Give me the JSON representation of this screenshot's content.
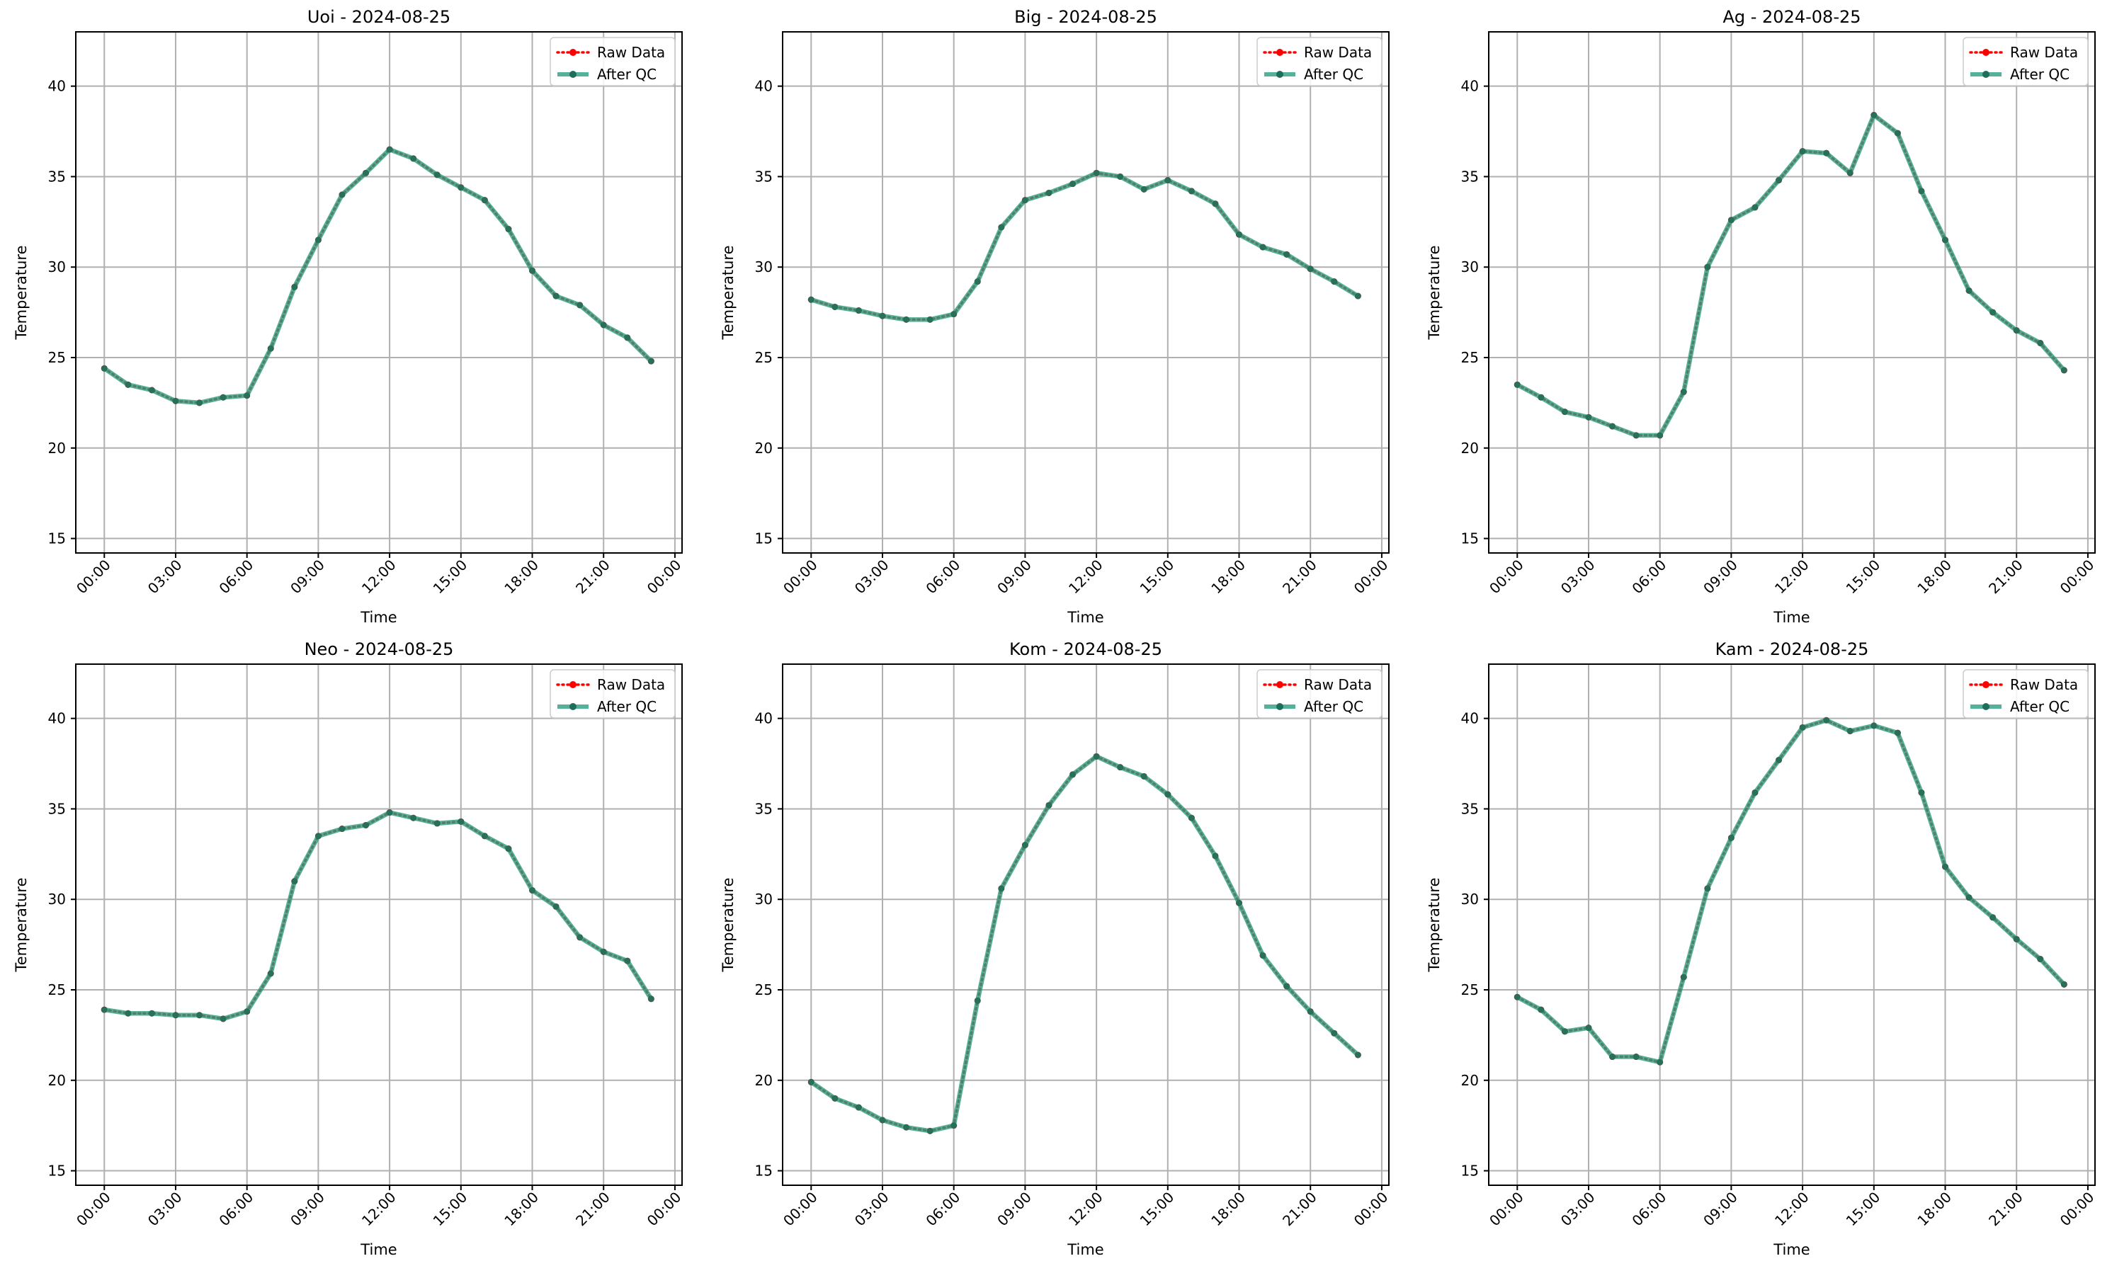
{
  "chart_data": [
    {
      "type": "line",
      "title": "Uoi - 2024-08-25",
      "xlabel": "Time",
      "ylabel": "Temperature",
      "x": [
        0,
        1,
        2,
        3,
        4,
        5,
        6,
        7,
        8,
        9,
        10,
        11,
        12,
        13,
        14,
        15,
        16,
        17,
        18,
        19,
        20,
        21,
        22,
        23
      ],
      "xticks": [
        "00:00",
        "03:00",
        "06:00",
        "09:00",
        "12:00",
        "15:00",
        "18:00",
        "21:00",
        "00:00"
      ],
      "xlim": [
        -1.2,
        24.3
      ],
      "ylim": [
        14.2,
        43
      ],
      "yticks": [
        15,
        20,
        25,
        30,
        35,
        40
      ],
      "grid": true,
      "legend_position": "top-right",
      "series": [
        {
          "name": "Raw Data",
          "style": "dotted-marker",
          "color": "#ff0000",
          "values": [
            24.4,
            23.5,
            23.2,
            22.6,
            22.5,
            22.8,
            22.9,
            25.5,
            28.9,
            31.5,
            34.0,
            35.2,
            36.5,
            36.0,
            35.1,
            34.4,
            33.7,
            32.1,
            29.8,
            28.4,
            27.9,
            26.8,
            26.1,
            24.8
          ]
        },
        {
          "name": "After QC",
          "style": "solid-marker",
          "color": "#2a9d80",
          "values": [
            24.4,
            23.5,
            23.2,
            22.6,
            22.5,
            22.8,
            22.9,
            25.5,
            28.9,
            31.5,
            34.0,
            35.2,
            36.5,
            36.0,
            35.1,
            34.4,
            33.7,
            32.1,
            29.8,
            28.4,
            27.9,
            26.8,
            26.1,
            24.8
          ]
        }
      ]
    },
    {
      "type": "line",
      "title": "Big - 2024-08-25",
      "xlabel": "Time",
      "ylabel": "Temperature",
      "x": [
        0,
        1,
        2,
        3,
        4,
        5,
        6,
        7,
        8,
        9,
        10,
        11,
        12,
        13,
        14,
        15,
        16,
        17,
        18,
        19,
        20,
        21,
        22,
        23
      ],
      "xticks": [
        "00:00",
        "03:00",
        "06:00",
        "09:00",
        "12:00",
        "15:00",
        "18:00",
        "21:00",
        "00:00"
      ],
      "xlim": [
        -1.2,
        24.3
      ],
      "ylim": [
        14.2,
        43
      ],
      "yticks": [
        15,
        20,
        25,
        30,
        35,
        40
      ],
      "grid": true,
      "legend_position": "top-right",
      "series": [
        {
          "name": "Raw Data",
          "style": "dotted-marker",
          "color": "#ff0000",
          "values": [
            28.2,
            27.8,
            27.6,
            27.3,
            27.1,
            27.1,
            27.4,
            29.2,
            32.2,
            33.7,
            34.1,
            34.6,
            35.2,
            35.0,
            34.3,
            34.8,
            34.2,
            33.5,
            31.8,
            31.1,
            30.7,
            29.9,
            29.2,
            28.4
          ]
        },
        {
          "name": "After QC",
          "style": "solid-marker",
          "color": "#2a9d80",
          "values": [
            28.2,
            27.8,
            27.6,
            27.3,
            27.1,
            27.1,
            27.4,
            29.2,
            32.2,
            33.7,
            34.1,
            34.6,
            35.2,
            35.0,
            34.3,
            34.8,
            34.2,
            33.5,
            31.8,
            31.1,
            30.7,
            29.9,
            29.2,
            28.4
          ]
        }
      ]
    },
    {
      "type": "line",
      "title": "Ag - 2024-08-25",
      "xlabel": "Time",
      "ylabel": "Temperature",
      "x": [
        0,
        1,
        2,
        3,
        4,
        5,
        6,
        7,
        8,
        9,
        10,
        11,
        12,
        13,
        14,
        15,
        16,
        17,
        18,
        19,
        20,
        21,
        22,
        23
      ],
      "xticks": [
        "00:00",
        "03:00",
        "06:00",
        "09:00",
        "12:00",
        "15:00",
        "18:00",
        "21:00",
        "00:00"
      ],
      "xlim": [
        -1.2,
        24.3
      ],
      "ylim": [
        14.2,
        43
      ],
      "yticks": [
        15,
        20,
        25,
        30,
        35,
        40
      ],
      "grid": true,
      "legend_position": "top-right",
      "series": [
        {
          "name": "Raw Data",
          "style": "dotted-marker",
          "color": "#ff0000",
          "values": [
            23.5,
            22.8,
            22.0,
            21.7,
            21.2,
            20.7,
            20.7,
            23.1,
            30.0,
            32.6,
            33.3,
            34.8,
            36.4,
            36.3,
            35.2,
            38.4,
            37.4,
            34.2,
            31.5,
            28.7,
            27.5,
            26.5,
            25.8,
            24.3
          ]
        },
        {
          "name": "After QC",
          "style": "solid-marker",
          "color": "#2a9d80",
          "values": [
            23.5,
            22.8,
            22.0,
            21.7,
            21.2,
            20.7,
            20.7,
            23.1,
            30.0,
            32.6,
            33.3,
            34.8,
            36.4,
            36.3,
            35.2,
            38.4,
            37.4,
            34.2,
            31.5,
            28.7,
            27.5,
            26.5,
            25.8,
            24.3
          ]
        }
      ]
    },
    {
      "type": "line",
      "title": "Neo - 2024-08-25",
      "xlabel": "Time",
      "ylabel": "Temperature",
      "x": [
        0,
        1,
        2,
        3,
        4,
        5,
        6,
        7,
        8,
        9,
        10,
        11,
        12,
        13,
        14,
        15,
        16,
        17,
        18,
        19,
        20,
        21,
        22,
        23
      ],
      "xticks": [
        "00:00",
        "03:00",
        "06:00",
        "09:00",
        "12:00",
        "15:00",
        "18:00",
        "21:00",
        "00:00"
      ],
      "xlim": [
        -1.2,
        24.3
      ],
      "ylim": [
        14.2,
        43
      ],
      "yticks": [
        15,
        20,
        25,
        30,
        35,
        40
      ],
      "grid": true,
      "legend_position": "top-right",
      "series": [
        {
          "name": "Raw Data",
          "style": "dotted-marker",
          "color": "#ff0000",
          "values": [
            23.9,
            23.7,
            23.7,
            23.6,
            23.6,
            23.4,
            23.8,
            25.9,
            31.0,
            33.5,
            33.9,
            34.1,
            34.8,
            34.5,
            34.2,
            34.3,
            33.5,
            32.8,
            30.5,
            29.6,
            27.9,
            27.1,
            26.6,
            24.5
          ]
        },
        {
          "name": "After QC",
          "style": "solid-marker",
          "color": "#2a9d80",
          "values": [
            23.9,
            23.7,
            23.7,
            23.6,
            23.6,
            23.4,
            23.8,
            25.9,
            31.0,
            33.5,
            33.9,
            34.1,
            34.8,
            34.5,
            34.2,
            34.3,
            33.5,
            32.8,
            30.5,
            29.6,
            27.9,
            27.1,
            26.6,
            24.5
          ]
        }
      ]
    },
    {
      "type": "line",
      "title": "Kom - 2024-08-25",
      "xlabel": "Time",
      "ylabel": "Temperature",
      "x": [
        0,
        1,
        2,
        3,
        4,
        5,
        6,
        7,
        8,
        9,
        10,
        11,
        12,
        13,
        14,
        15,
        16,
        17,
        18,
        19,
        20,
        21,
        22,
        23
      ],
      "xticks": [
        "00:00",
        "03:00",
        "06:00",
        "09:00",
        "12:00",
        "15:00",
        "18:00",
        "21:00",
        "00:00"
      ],
      "xlim": [
        -1.2,
        24.3
      ],
      "ylim": [
        14.2,
        43
      ],
      "yticks": [
        15,
        20,
        25,
        30,
        35,
        40
      ],
      "grid": true,
      "legend_position": "top-right",
      "series": [
        {
          "name": "Raw Data",
          "style": "dotted-marker",
          "color": "#ff0000",
          "values": [
            19.9,
            19.0,
            18.5,
            17.8,
            17.4,
            17.2,
            17.5,
            24.4,
            30.6,
            33.0,
            35.2,
            36.9,
            37.9,
            37.3,
            36.8,
            35.8,
            34.5,
            32.4,
            29.8,
            26.9,
            25.2,
            23.8,
            22.6,
            21.4
          ]
        },
        {
          "name": "After QC",
          "style": "solid-marker",
          "color": "#2a9d80",
          "values": [
            19.9,
            19.0,
            18.5,
            17.8,
            17.4,
            17.2,
            17.5,
            24.4,
            30.6,
            33.0,
            35.2,
            36.9,
            37.9,
            37.3,
            36.8,
            35.8,
            34.5,
            32.4,
            29.8,
            26.9,
            25.2,
            23.8,
            22.6,
            21.4
          ]
        }
      ]
    },
    {
      "type": "line",
      "title": "Kam - 2024-08-25",
      "xlabel": "Time",
      "ylabel": "Temperature",
      "x": [
        0,
        1,
        2,
        3,
        4,
        5,
        6,
        7,
        8,
        9,
        10,
        11,
        12,
        13,
        14,
        15,
        16,
        17,
        18,
        19,
        20,
        21,
        22,
        23
      ],
      "xticks": [
        "00:00",
        "03:00",
        "06:00",
        "09:00",
        "12:00",
        "15:00",
        "18:00",
        "21:00",
        "00:00"
      ],
      "xlim": [
        -1.2,
        24.3
      ],
      "ylim": [
        14.2,
        43
      ],
      "yticks": [
        15,
        20,
        25,
        30,
        35,
        40
      ],
      "grid": true,
      "legend_position": "top-right",
      "series": [
        {
          "name": "Raw Data",
          "style": "dotted-marker",
          "color": "#ff0000",
          "values": [
            24.6,
            23.9,
            22.7,
            22.9,
            21.3,
            21.3,
            21.0,
            25.7,
            30.6,
            33.4,
            35.9,
            37.7,
            39.5,
            39.9,
            39.3,
            39.6,
            39.2,
            35.9,
            31.8,
            30.1,
            29.0,
            27.8,
            26.7,
            25.3
          ]
        },
        {
          "name": "After QC",
          "style": "solid-marker",
          "color": "#2a9d80",
          "values": [
            24.6,
            23.9,
            22.7,
            22.9,
            21.3,
            21.3,
            21.0,
            25.7,
            30.6,
            33.4,
            35.9,
            37.7,
            39.5,
            39.9,
            39.3,
            39.6,
            39.2,
            35.9,
            31.8,
            30.1,
            29.0,
            27.8,
            26.7,
            25.3
          ]
        }
      ]
    }
  ]
}
